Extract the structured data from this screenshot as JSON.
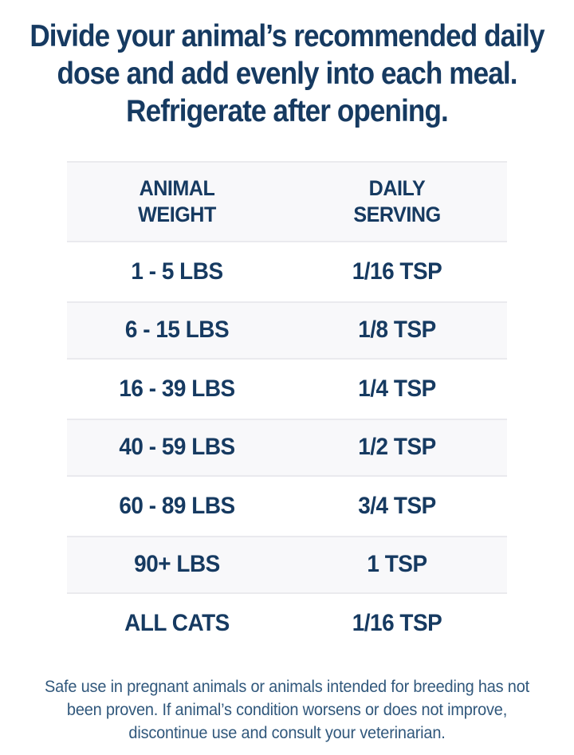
{
  "instructions": "Divide your animal’s recommended daily dose and add evenly into each meal. Refrigerate after opening.",
  "table": {
    "columns": [
      {
        "label": "ANIMAL\nWEIGHT"
      },
      {
        "label": "DAILY\nSERVING"
      }
    ],
    "rows": [
      {
        "weight": "1 - 5 LBS",
        "serving": "1/16 TSP"
      },
      {
        "weight": "6 - 15 LBS",
        "serving": "1/8 TSP"
      },
      {
        "weight": "16 - 39 LBS",
        "serving": "1/4 TSP"
      },
      {
        "weight": "40 - 59 LBS",
        "serving": "1/2 TSP"
      },
      {
        "weight": "60 - 89 LBS",
        "serving": "3/4 TSP"
      },
      {
        "weight": "90+ LBS",
        "serving": "1 TSP"
      },
      {
        "weight": "ALL CATS",
        "serving": "1/16 TSP"
      }
    ]
  },
  "disclaimer": "Safe use in pregnant animals or animals intended for breeding has not been proven. If animal’s condition worsens or does not improve, discontinue use and consult your veterinarian.",
  "colors": {
    "text_navy": "#163a61",
    "disclaimer_blue": "#31587c",
    "stripe_gray": "#f8f8fa",
    "stripe_border": "#eaeaee",
    "background": "#ffffff"
  }
}
